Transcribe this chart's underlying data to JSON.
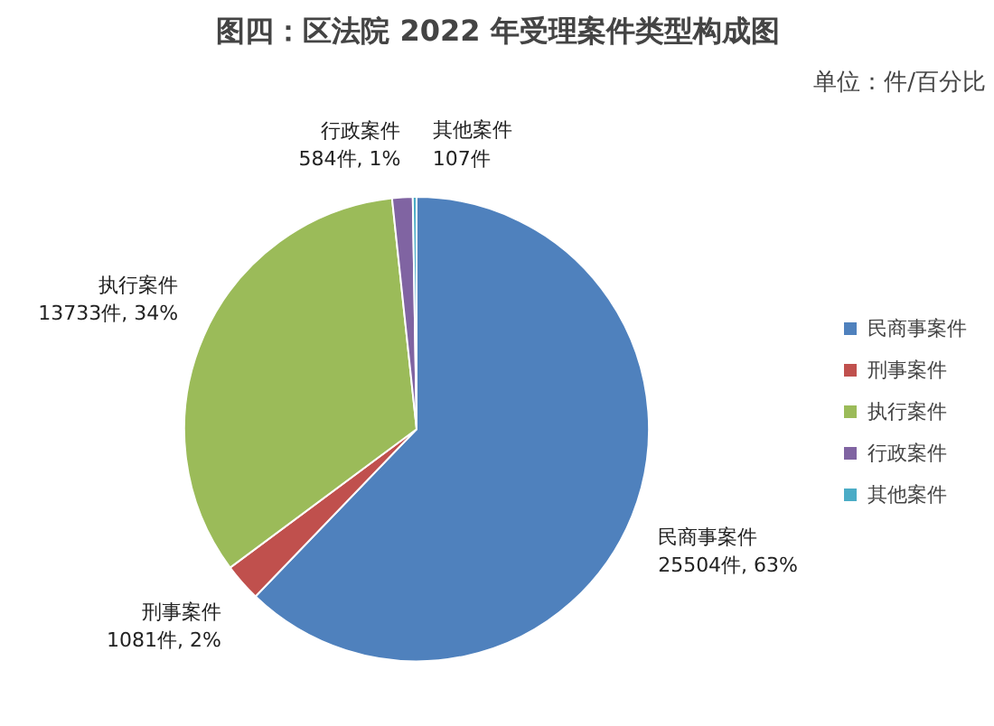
{
  "chart_data": {
    "type": "pie",
    "title": "图四：区法院 2022 年受理案件类型构成图",
    "subtitle": "单位：件/百分比",
    "categories": [
      "民商事案件",
      "刑事案件",
      "执行案件",
      "行政案件",
      "其他案件"
    ],
    "values": [
      25504,
      1081,
      13733,
      584,
      107
    ],
    "colors": [
      "#4f81bd",
      "#c0504d",
      "#9bbb59",
      "#8064a2",
      "#4bacc6"
    ],
    "value_labels": [
      "25504件, 63%",
      "1081件, 2%",
      "13733件, 34%",
      "584件, 1%",
      "107件"
    ],
    "legend": "right"
  }
}
